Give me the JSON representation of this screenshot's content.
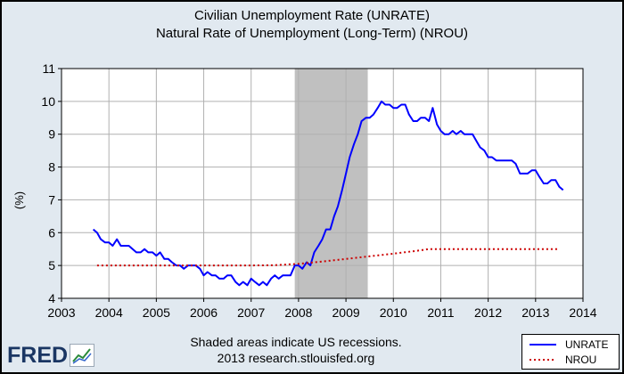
{
  "chart_data": {
    "type": "line",
    "title": "Civilian Unemployment Rate (UNRATE)",
    "subtitle": "Natural Rate of Unemployment (Long-Term) (NROU)",
    "ylabel": "(%)",
    "xlabel": "",
    "xlim": [
      2003,
      2014
    ],
    "ylim": [
      4,
      11
    ],
    "x_ticks": [
      "2003",
      "2004",
      "2005",
      "2006",
      "2007",
      "2008",
      "2009",
      "2010",
      "2011",
      "2012",
      "2013",
      "2014"
    ],
    "y_ticks": [
      "4",
      "5",
      "6",
      "7",
      "8",
      "9",
      "10",
      "11"
    ],
    "grid": true,
    "legend_position": "bottom-right",
    "recession_shading": [
      [
        2007.92,
        2009.46
      ]
    ],
    "series": [
      {
        "name": "UNRATE",
        "color": "#0000ff",
        "style": "solid",
        "points": [
          [
            2003.67,
            6.1
          ],
          [
            2003.75,
            6.0
          ],
          [
            2003.83,
            5.8
          ],
          [
            2003.92,
            5.7
          ],
          [
            2004.0,
            5.7
          ],
          [
            2004.08,
            5.6
          ],
          [
            2004.17,
            5.8
          ],
          [
            2004.25,
            5.6
          ],
          [
            2004.33,
            5.6
          ],
          [
            2004.42,
            5.6
          ],
          [
            2004.5,
            5.5
          ],
          [
            2004.58,
            5.4
          ],
          [
            2004.67,
            5.4
          ],
          [
            2004.75,
            5.5
          ],
          [
            2004.83,
            5.4
          ],
          [
            2004.92,
            5.4
          ],
          [
            2005.0,
            5.3
          ],
          [
            2005.08,
            5.4
          ],
          [
            2005.17,
            5.2
          ],
          [
            2005.25,
            5.2
          ],
          [
            2005.33,
            5.1
          ],
          [
            2005.42,
            5.0
          ],
          [
            2005.5,
            5.0
          ],
          [
            2005.58,
            4.9
          ],
          [
            2005.67,
            5.0
          ],
          [
            2005.75,
            5.0
          ],
          [
            2005.83,
            5.0
          ],
          [
            2005.92,
            4.9
          ],
          [
            2006.0,
            4.7
          ],
          [
            2006.08,
            4.8
          ],
          [
            2006.17,
            4.7
          ],
          [
            2006.25,
            4.7
          ],
          [
            2006.33,
            4.6
          ],
          [
            2006.42,
            4.6
          ],
          [
            2006.5,
            4.7
          ],
          [
            2006.58,
            4.7
          ],
          [
            2006.67,
            4.5
          ],
          [
            2006.75,
            4.4
          ],
          [
            2006.83,
            4.5
          ],
          [
            2006.92,
            4.4
          ],
          [
            2007.0,
            4.6
          ],
          [
            2007.08,
            4.5
          ],
          [
            2007.17,
            4.4
          ],
          [
            2007.25,
            4.5
          ],
          [
            2007.33,
            4.4
          ],
          [
            2007.42,
            4.6
          ],
          [
            2007.5,
            4.7
          ],
          [
            2007.58,
            4.6
          ],
          [
            2007.67,
            4.7
          ],
          [
            2007.75,
            4.7
          ],
          [
            2007.83,
            4.7
          ],
          [
            2007.92,
            5.0
          ],
          [
            2008.0,
            5.0
          ],
          [
            2008.08,
            4.9
          ],
          [
            2008.17,
            5.1
          ],
          [
            2008.25,
            5.0
          ],
          [
            2008.33,
            5.4
          ],
          [
            2008.42,
            5.6
          ],
          [
            2008.5,
            5.8
          ],
          [
            2008.58,
            6.1
          ],
          [
            2008.67,
            6.1
          ],
          [
            2008.75,
            6.5
          ],
          [
            2008.83,
            6.8
          ],
          [
            2008.92,
            7.3
          ],
          [
            2009.0,
            7.8
          ],
          [
            2009.08,
            8.3
          ],
          [
            2009.17,
            8.7
          ],
          [
            2009.25,
            9.0
          ],
          [
            2009.33,
            9.4
          ],
          [
            2009.42,
            9.5
          ],
          [
            2009.5,
            9.5
          ],
          [
            2009.58,
            9.6
          ],
          [
            2009.67,
            9.8
          ],
          [
            2009.75,
            10.0
          ],
          [
            2009.83,
            9.9
          ],
          [
            2009.92,
            9.9
          ],
          [
            2010.0,
            9.8
          ],
          [
            2010.08,
            9.8
          ],
          [
            2010.17,
            9.9
          ],
          [
            2010.25,
            9.9
          ],
          [
            2010.33,
            9.6
          ],
          [
            2010.42,
            9.4
          ],
          [
            2010.5,
            9.4
          ],
          [
            2010.58,
            9.5
          ],
          [
            2010.67,
            9.5
          ],
          [
            2010.75,
            9.4
          ],
          [
            2010.83,
            9.8
          ],
          [
            2010.92,
            9.3
          ],
          [
            2011.0,
            9.1
          ],
          [
            2011.08,
            9.0
          ],
          [
            2011.17,
            9.0
          ],
          [
            2011.25,
            9.1
          ],
          [
            2011.33,
            9.0
          ],
          [
            2011.42,
            9.1
          ],
          [
            2011.5,
            9.0
          ],
          [
            2011.58,
            9.0
          ],
          [
            2011.67,
            9.0
          ],
          [
            2011.75,
            8.8
          ],
          [
            2011.83,
            8.6
          ],
          [
            2011.92,
            8.5
          ],
          [
            2012.0,
            8.3
          ],
          [
            2012.08,
            8.3
          ],
          [
            2012.17,
            8.2
          ],
          [
            2012.25,
            8.2
          ],
          [
            2012.33,
            8.2
          ],
          [
            2012.42,
            8.2
          ],
          [
            2012.5,
            8.2
          ],
          [
            2012.58,
            8.1
          ],
          [
            2012.67,
            7.8
          ],
          [
            2012.75,
            7.8
          ],
          [
            2012.83,
            7.8
          ],
          [
            2012.92,
            7.9
          ],
          [
            2013.0,
            7.9
          ],
          [
            2013.08,
            7.7
          ],
          [
            2013.17,
            7.5
          ],
          [
            2013.25,
            7.5
          ],
          [
            2013.33,
            7.6
          ],
          [
            2013.42,
            7.6
          ],
          [
            2013.5,
            7.4
          ],
          [
            2013.58,
            7.3
          ]
        ]
      },
      {
        "name": "NROU",
        "color": "#cc0000",
        "style": "dotted",
        "points": [
          [
            2003.75,
            5.0
          ],
          [
            2004.0,
            5.0
          ],
          [
            2004.5,
            5.0
          ],
          [
            2005.0,
            5.0
          ],
          [
            2005.5,
            5.0
          ],
          [
            2006.0,
            5.0
          ],
          [
            2006.5,
            5.0
          ],
          [
            2007.0,
            5.0
          ],
          [
            2007.5,
            5.01
          ],
          [
            2008.0,
            5.05
          ],
          [
            2008.5,
            5.12
          ],
          [
            2009.0,
            5.2
          ],
          [
            2009.5,
            5.28
          ],
          [
            2010.0,
            5.36
          ],
          [
            2010.5,
            5.45
          ],
          [
            2010.75,
            5.5
          ],
          [
            2011.0,
            5.5
          ],
          [
            2011.5,
            5.5
          ],
          [
            2012.0,
            5.5
          ],
          [
            2012.5,
            5.5
          ],
          [
            2013.0,
            5.5
          ],
          [
            2013.5,
            5.5
          ]
        ]
      }
    ]
  },
  "footer": {
    "note_line1": "Shaded areas indicate US recessions.",
    "note_line2": "2013 research.stlouisfed.org"
  },
  "logo": {
    "text": "FRED"
  },
  "legend": {
    "items": [
      "UNRATE",
      "NROU"
    ]
  }
}
